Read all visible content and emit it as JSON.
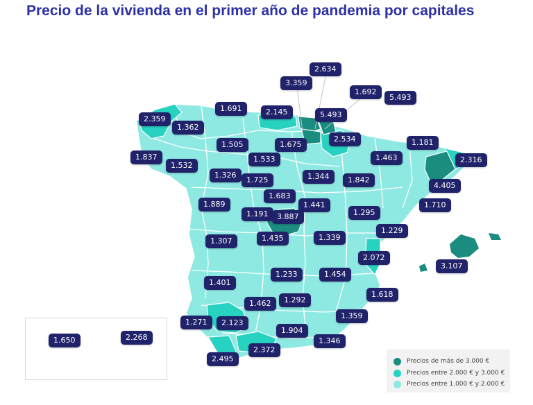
{
  "title": "Precio de la vivienda en el primer año de pandemia por capitales",
  "colors": {
    "high": "#1b8c80",
    "mid": "#27d2c0",
    "low": "#8ee9e2",
    "label_bg": "#20226a",
    "title": "#2d31a6"
  },
  "legend": [
    {
      "label": "Precios de más de 3.000 €",
      "color": "#1b8c80"
    },
    {
      "label": "Precios entre 2.000 € y 3.000 €",
      "color": "#27d2c0"
    },
    {
      "label": "Precios entre 1.000 € y 2.000 €",
      "color": "#8ee9e2"
    }
  ],
  "prices": [
    {
      "id": "lugo",
      "value": "1.691"
    },
    {
      "id": "coruna",
      "value": "2.359"
    },
    {
      "id": "ourense",
      "value": "1.362"
    },
    {
      "id": "pontevedra",
      "value": "1.837"
    },
    {
      "id": "zamora-west",
      "value": "1.532"
    },
    {
      "id": "santander",
      "value": "2.145"
    },
    {
      "id": "leon",
      "value": "1.505"
    },
    {
      "id": "burgos",
      "value": "1.675"
    },
    {
      "id": "palencia",
      "value": "1.533"
    },
    {
      "id": "zamora",
      "value": "1.326"
    },
    {
      "id": "valladolid",
      "value": "1.725"
    },
    {
      "id": "alava",
      "value": "3.359"
    },
    {
      "id": "bilbao",
      "value": "2.634"
    },
    {
      "id": "donostia-label",
      "value": "1.692"
    },
    {
      "id": "gipuzkoa",
      "value": "5.493"
    },
    {
      "id": "vizcaya",
      "value": "5.493"
    },
    {
      "id": "navarra",
      "value": "2.534"
    },
    {
      "id": "huesca",
      "value": "1.463"
    },
    {
      "id": "lleida",
      "value": "1.181"
    },
    {
      "id": "girona",
      "value": "2.316"
    },
    {
      "id": "barcelona",
      "value": "4.405"
    },
    {
      "id": "soria",
      "value": "1.344"
    },
    {
      "id": "zaragoza",
      "value": "1.842"
    },
    {
      "id": "salamanca",
      "value": "1.889"
    },
    {
      "id": "segovia",
      "value": "1.683"
    },
    {
      "id": "guadalajara",
      "value": "1.441"
    },
    {
      "id": "avila",
      "value": "1.191"
    },
    {
      "id": "madrid",
      "value": "3.887"
    },
    {
      "id": "teruel",
      "value": "1.295"
    },
    {
      "id": "tarragona",
      "value": "1.710"
    },
    {
      "id": "caceres",
      "value": "1.307"
    },
    {
      "id": "toledo",
      "value": "1.435"
    },
    {
      "id": "cuenca",
      "value": "1.339"
    },
    {
      "id": "castellon",
      "value": "1.229"
    },
    {
      "id": "valencia",
      "value": "2.072"
    },
    {
      "id": "baleares",
      "value": "3.107"
    },
    {
      "id": "badajoz",
      "value": "1.401"
    },
    {
      "id": "ciudad-real",
      "value": "1.233"
    },
    {
      "id": "albacete",
      "value": "1.454"
    },
    {
      "id": "alicante",
      "value": "1.618"
    },
    {
      "id": "cordoba",
      "value": "1.462"
    },
    {
      "id": "jaen",
      "value": "1.292"
    },
    {
      "id": "huelva",
      "value": "1.271"
    },
    {
      "id": "sevilla",
      "value": "2.123"
    },
    {
      "id": "murcia",
      "value": "1.359"
    },
    {
      "id": "granada",
      "value": "1.904"
    },
    {
      "id": "almeria",
      "value": "1.346"
    },
    {
      "id": "malaga",
      "value": "2.372"
    },
    {
      "id": "cadiz",
      "value": "2.495"
    },
    {
      "id": "tenerife",
      "value": "1.650"
    },
    {
      "id": "las-palmas",
      "value": "2.268"
    }
  ]
}
